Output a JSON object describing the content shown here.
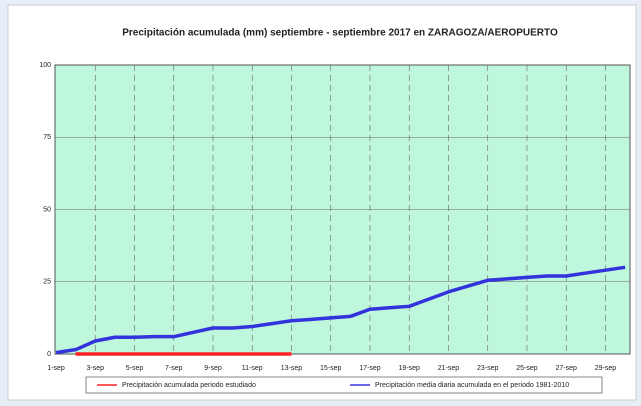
{
  "chart_data": {
    "type": "line",
    "title": "Precipitación acumulada (mm) septiembre - septiembre 2017 en ZARAGOZA/AEROPUERTO",
    "categories": [
      "1-sep",
      null,
      "3-sep",
      null,
      "5-sep",
      null,
      "7-sep",
      null,
      "9-sep",
      null,
      "11-sep",
      null,
      "13-sep",
      null,
      "15-sep",
      null,
      "17-sep",
      null,
      "19-sep",
      null,
      "21-sep",
      null,
      "23-sep",
      null,
      "25-sep",
      null,
      "27-sep",
      null,
      "29-sep",
      null
    ],
    "series": [
      {
        "name": "Precipitación acumulada periodo estudiado",
        "color": "#ff2020",
        "values": [
          null,
          0,
          0,
          0,
          0,
          0,
          0,
          0,
          0,
          0,
          0,
          0,
          0,
          null,
          null,
          null,
          null,
          null,
          null,
          null,
          null,
          null,
          null,
          null,
          null,
          null,
          null,
          null,
          null,
          null
        ]
      },
      {
        "name": "Precipitación media diaria acumulada en el periodo 1981-2010",
        "color": "#3333dd",
        "values": [
          0.5,
          1.5,
          4.5,
          5.8,
          5.8,
          6,
          6,
          7.5,
          9,
          9,
          9.5,
          10.5,
          11.5,
          12,
          12.5,
          13,
          15.5,
          16,
          16.5,
          19,
          21.5,
          23.5,
          25.5,
          26,
          26.5,
          27,
          27,
          28,
          29,
          30
        ]
      }
    ],
    "ylim": [
      0,
      100
    ],
    "yticks": [
      0,
      25,
      50,
      75,
      100
    ],
    "grid": true
  }
}
